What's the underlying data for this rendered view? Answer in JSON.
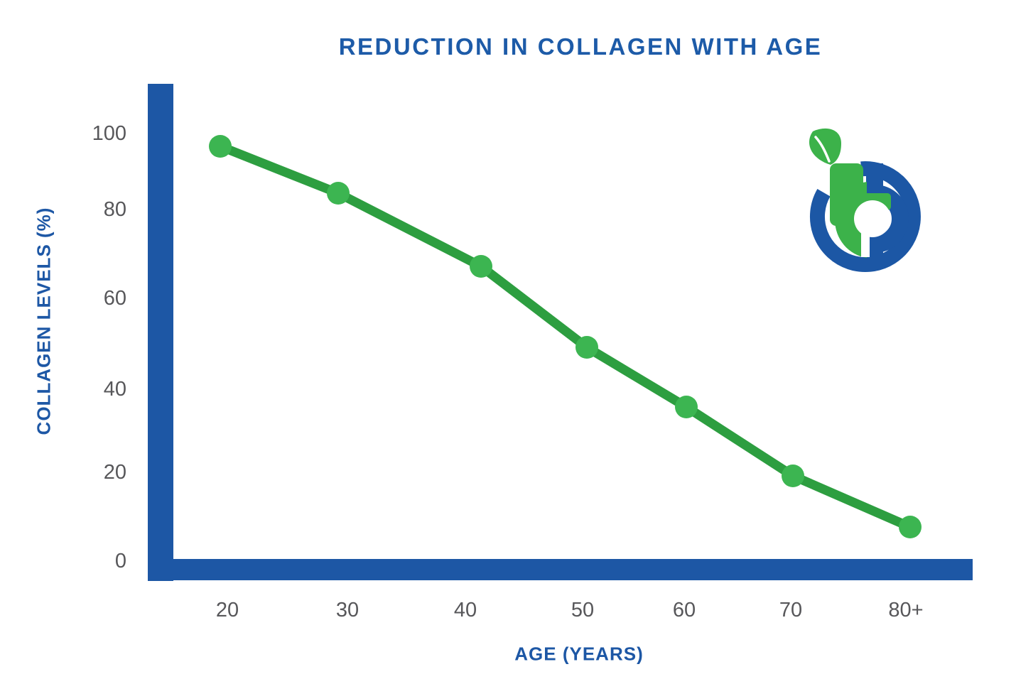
{
  "chart_data": {
    "type": "line",
    "title": "REDUCTION IN COLLAGEN WITH AGE",
    "xlabel": "AGE (YEARS)",
    "ylabel": "COLLAGEN LEVELS (%)",
    "categories": [
      "20",
      "30",
      "40",
      "50",
      "60",
      "70",
      "80+"
    ],
    "values": [
      97,
      86,
      69,
      50,
      36,
      20,
      8
    ],
    "y_ticks": [
      0,
      20,
      40,
      60,
      80,
      100
    ],
    "ylim": [
      0,
      112
    ],
    "grid": false,
    "legend": false,
    "marker": "circle"
  },
  "colors": {
    "axis_blue": "#1d57a5",
    "title_blue": "#1d5ba8",
    "tick_gray": "#57575a",
    "line_green": "#2d9e40",
    "marker_green": "#3cb551",
    "logo_green": "#3cb24a",
    "logo_blue": "#1c57a5",
    "background": "#ffffff"
  },
  "logo": {
    "icon": "tb-leaf-circle-logo"
  }
}
